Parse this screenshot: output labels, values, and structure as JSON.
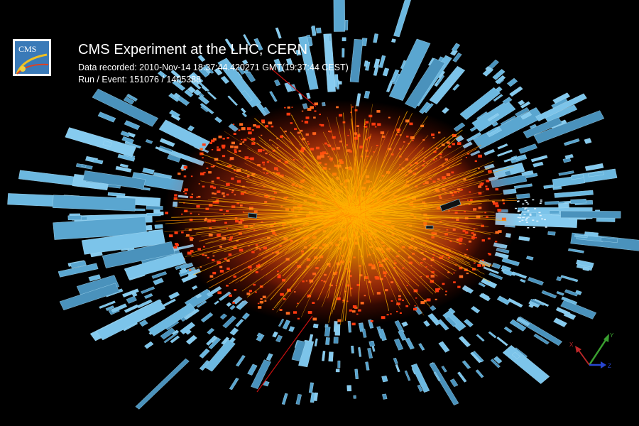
{
  "header": {
    "title": "CMS Experiment at the LHC, CERN",
    "data_recorded": "Data recorded: 2010-Nov-14 18:37:44.420271 GMT(19:37:44 CEST)",
    "run_event": "Run / Event: 151076 / 1405388"
  },
  "logo": {
    "text": "CMS"
  },
  "axes": {
    "x": "X",
    "y": "Y",
    "z": "Z"
  },
  "colors": {
    "background": "#000000",
    "calorimeter_towers": "#6cb8e0",
    "track_core": "#ffb000",
    "track_halo": "#ff3a10",
    "beam_line": "#d01010",
    "axis_x": "#c0282a",
    "axis_y": "#3aa030",
    "axis_z": "#2846d0"
  },
  "icons": [
    "cms-logo-icon",
    "coordinate-axes-icon"
  ]
}
